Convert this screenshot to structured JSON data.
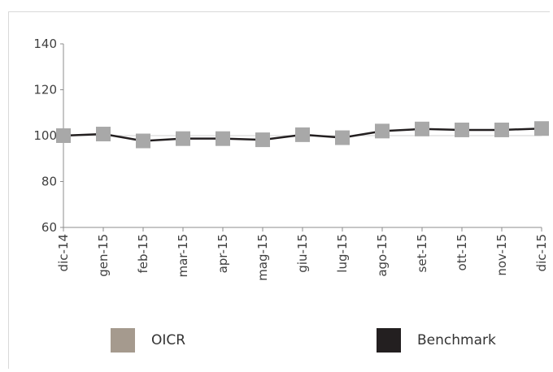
{
  "chart_data": {
    "type": "line",
    "title": "",
    "xlabel": "",
    "ylabel": "",
    "ylim": [
      60,
      140
    ],
    "y_ticks": [
      60,
      80,
      100,
      120,
      140
    ],
    "grid": false,
    "legend_position": "bottom",
    "categories": [
      "dic-14",
      "gen-15",
      "feb-15",
      "mar-15",
      "apr-15",
      "mag-15",
      "giu-15",
      "lug-15",
      "ago-15",
      "set-15",
      "ott-15",
      "nov-15",
      "dic-15"
    ],
    "series": [
      {
        "name": "OICR",
        "style": "markers",
        "color": "#a8a8a8",
        "values": [
          100.0,
          100.7,
          97.7,
          98.7,
          98.7,
          98.2,
          100.4,
          99.1,
          102.0,
          102.9,
          102.5,
          102.5,
          103.1
        ]
      },
      {
        "name": "Benchmark",
        "style": "line",
        "color": "#231f20",
        "values": [
          100.0,
          100.7,
          97.7,
          98.7,
          98.7,
          98.2,
          100.4,
          99.1,
          102.0,
          102.9,
          102.5,
          102.5,
          103.1
        ]
      }
    ]
  },
  "legend": {
    "oicr_label": "OICR",
    "oicr_color": "#a59a8e",
    "benchmark_label": "Benchmark",
    "benchmark_color": "#231f20"
  }
}
